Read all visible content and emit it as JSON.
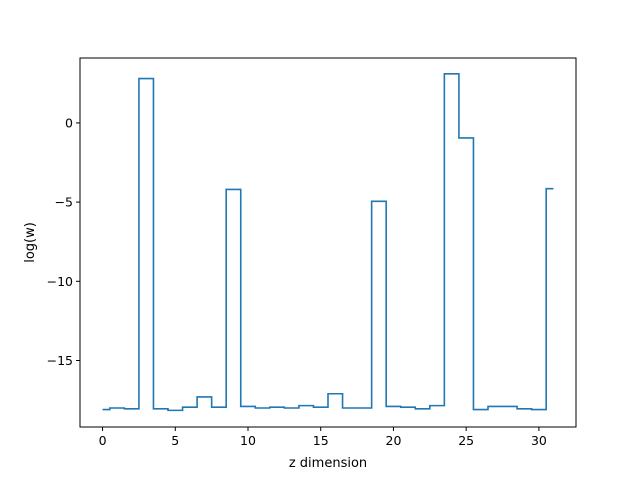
{
  "chart_data": {
    "type": "line",
    "step": "mid",
    "title": "",
    "xlabel": "z dimension",
    "ylabel": "log(w)",
    "xlim": [
      -1.55,
      32.55
    ],
    "ylim": [
      -19.2,
      4.1
    ],
    "xticks": [
      0,
      5,
      10,
      15,
      20,
      25,
      30
    ],
    "yticks": [
      -15,
      -10,
      -5,
      0
    ],
    "xtick_labels": [
      "0",
      "5",
      "10",
      "15",
      "20",
      "25",
      "30"
    ],
    "ytick_labels": [
      "−15",
      "−10",
      "−5",
      "0"
    ],
    "grid": false,
    "color": "#1f77b4",
    "series": [
      {
        "x": [
          0,
          1,
          2,
          3,
          4,
          5,
          6,
          7,
          8,
          9,
          10,
          11,
          12,
          13,
          14,
          15,
          16,
          17,
          18,
          19,
          20,
          21,
          22,
          23,
          24,
          25,
          26,
          27,
          28,
          29,
          30,
          31
        ],
        "values": [
          -18.1,
          -18.0,
          -18.05,
          2.8,
          -18.05,
          -18.15,
          -17.95,
          -17.3,
          -17.95,
          -4.2,
          -17.9,
          -18.0,
          -17.95,
          -18.0,
          -17.85,
          -17.95,
          -17.1,
          -18.0,
          -18.0,
          -4.95,
          -17.9,
          -17.95,
          -18.05,
          -17.85,
          3.1,
          -0.95,
          -18.1,
          -17.9,
          -17.9,
          -18.05,
          -18.1,
          -4.15
        ]
      }
    ]
  }
}
